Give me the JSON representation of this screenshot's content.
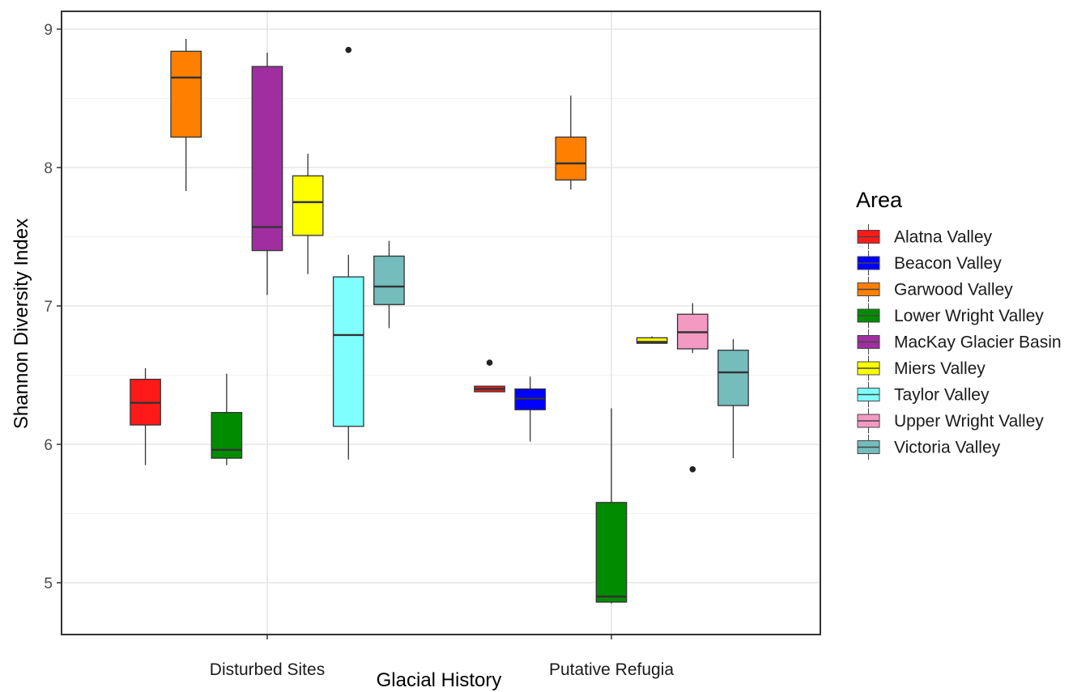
{
  "chart_data": {
    "type": "boxplot",
    "xlabel": "Glacial History",
    "ylabel": "Shannon Diversity Index",
    "ylim": [
      4.8,
      9.2
    ],
    "yticks": [
      5,
      6,
      7,
      8,
      9
    ],
    "grid": true,
    "legend_position": "right",
    "legend_title": "Area",
    "categories": [
      "Disturbed Sites",
      "Putative Refugia"
    ],
    "series": [
      {
        "name": "Alatna Valley",
        "color": "#ff1a1a",
        "boxes": [
          {
            "category": "Disturbed Sites",
            "min": 5.85,
            "q1": 6.14,
            "median": 6.3,
            "q3": 6.47,
            "max": 6.55,
            "outliers": []
          },
          {
            "category": "Putative Refugia",
            "min": 6.38,
            "q1": 6.38,
            "median": 6.4,
            "q3": 6.42,
            "max": 6.42,
            "outliers": [
              6.59
            ]
          }
        ]
      },
      {
        "name": "Beacon Valley",
        "color": "#0000ff",
        "boxes": [
          {
            "category": "Putative Refugia",
            "min": 6.02,
            "q1": 6.25,
            "median": 6.33,
            "q3": 6.4,
            "max": 6.49,
            "outliers": []
          }
        ]
      },
      {
        "name": "Garwood Valley",
        "color": "#ff8000",
        "boxes": [
          {
            "category": "Disturbed Sites",
            "min": 7.83,
            "q1": 8.22,
            "median": 8.65,
            "q3": 8.84,
            "max": 8.93,
            "outliers": []
          },
          {
            "category": "Putative Refugia",
            "min": 7.84,
            "q1": 7.91,
            "median": 8.03,
            "q3": 8.22,
            "max": 8.52,
            "outliers": []
          }
        ]
      },
      {
        "name": "Lower Wright Valley",
        "color": "#008c00",
        "boxes": [
          {
            "category": "Disturbed Sites",
            "min": 5.85,
            "q1": 5.9,
            "median": 5.96,
            "q3": 6.23,
            "max": 6.51,
            "outliers": []
          },
          {
            "category": "Putative Refugia",
            "min": 4.85,
            "q1": 4.86,
            "median": 4.9,
            "q3": 5.58,
            "max": 6.26,
            "outliers": []
          }
        ]
      },
      {
        "name": "MacKay Glacier Basin",
        "color": "#a12ea1",
        "boxes": [
          {
            "category": "Disturbed Sites",
            "min": 7.08,
            "q1": 7.4,
            "median": 7.57,
            "q3": 8.73,
            "max": 8.83,
            "outliers": []
          }
        ]
      },
      {
        "name": "Miers Valley",
        "color": "#ffff00",
        "boxes": [
          {
            "category": "Disturbed Sites",
            "min": 7.23,
            "q1": 7.51,
            "median": 7.75,
            "q3": 7.94,
            "max": 8.1,
            "outliers": []
          },
          {
            "category": "Putative Refugia",
            "min": 6.73,
            "q1": 6.73,
            "median": 6.74,
            "q3": 6.77,
            "max": 6.78,
            "outliers": []
          }
        ]
      },
      {
        "name": "Taylor Valley",
        "color": "#80ffff",
        "boxes": [
          {
            "category": "Disturbed Sites",
            "min": 5.89,
            "q1": 6.13,
            "median": 6.79,
            "q3": 7.21,
            "max": 7.37,
            "outliers": [
              8.85
            ]
          }
        ]
      },
      {
        "name": "Upper Wright Valley",
        "color": "#f49ac2",
        "boxes": [
          {
            "category": "Putative Refugia",
            "min": 6.66,
            "q1": 6.69,
            "median": 6.81,
            "q3": 6.94,
            "max": 7.02,
            "outliers": [
              5.82
            ]
          }
        ]
      },
      {
        "name": "Victoria Valley",
        "color": "#75bcbc",
        "boxes": [
          {
            "category": "Disturbed Sites",
            "min": 6.84,
            "q1": 7.01,
            "median": 7.14,
            "q3": 7.36,
            "max": 7.47,
            "outliers": []
          },
          {
            "category": "Putative Refugia",
            "min": 5.9,
            "q1": 6.28,
            "median": 6.52,
            "q3": 6.68,
            "max": 6.76,
            "outliers": []
          }
        ]
      }
    ]
  }
}
